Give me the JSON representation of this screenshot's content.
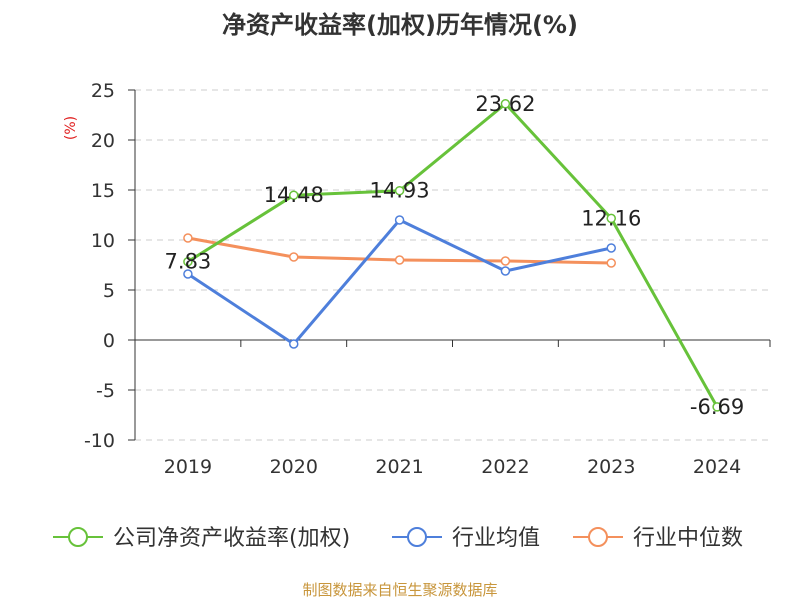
{
  "chart_data": {
    "type": "line",
    "title": "净资产收益率(加权)历年情况(%)",
    "ylabel": "(%)",
    "xlabel": "",
    "ylim": [
      -10,
      25
    ],
    "yticks": [
      25,
      20,
      15,
      10,
      5,
      0,
      -5,
      -10
    ],
    "categories": [
      "2019",
      "2020",
      "2021",
      "2022",
      "2023",
      "2024"
    ],
    "grid": true,
    "legend_position": "bottom",
    "series": [
      {
        "name": "公司净资产收益率(加权)",
        "color": "#67c23a",
        "values": [
          7.83,
          14.48,
          14.93,
          23.62,
          12.16,
          -6.69
        ],
        "labels": [
          "7.83",
          "14.48",
          "14.93",
          "23.62",
          "12.16",
          "-6.69"
        ]
      },
      {
        "name": "行业均值",
        "color": "#4e7fdb",
        "values": [
          6.6,
          -0.4,
          12.0,
          6.9,
          9.2,
          null
        ]
      },
      {
        "name": "行业中位数",
        "color": "#f4905c",
        "values": [
          10.2,
          8.3,
          8.0,
          7.9,
          7.7,
          null
        ]
      }
    ]
  },
  "source": "制图数据来自恒生聚源数据库"
}
